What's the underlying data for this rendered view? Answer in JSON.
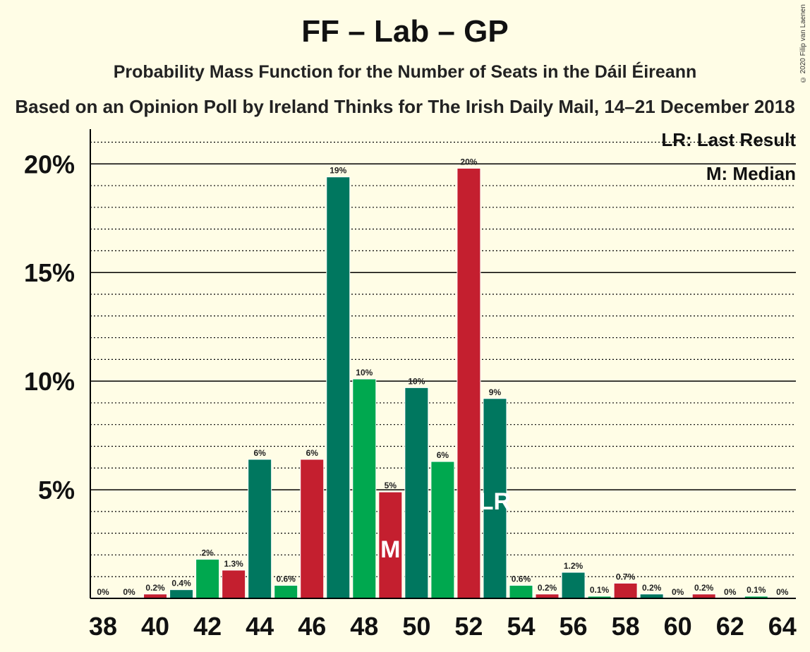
{
  "title": "FF – Lab – GP",
  "subtitle": "Probability Mass Function for the Number of Seats in the Dáil Éireann",
  "subtitle2": "Based on an Opinion Poll by Ireland Thinks for The Irish Daily Mail, 14–21 December 2018",
  "copyright": "© 2020 Filip van Laenen",
  "legend": {
    "last_result": "LR: Last Result",
    "median": "M: Median"
  },
  "colors": {
    "background": "#fffde6",
    "dark_green": "#00775f",
    "green": "#00a84f",
    "red": "#c41f2f"
  },
  "chart_data": {
    "type": "bar",
    "x": [
      38,
      39,
      40,
      41,
      42,
      43,
      44,
      45,
      46,
      47,
      48,
      49,
      50,
      51,
      52,
      53,
      54,
      55,
      56,
      57,
      58,
      59,
      60,
      61,
      62,
      63,
      64
    ],
    "values": [
      0,
      0,
      0.2,
      0.4,
      1.8,
      1.3,
      6.4,
      0.6,
      6.4,
      19.4,
      10.1,
      4.9,
      9.7,
      6.3,
      19.8,
      9.2,
      0.6,
      0.2,
      1.2,
      0.1,
      0.7,
      0.2,
      0,
      0.2,
      0,
      0.1,
      0
    ],
    "labels": [
      "0%",
      "0%",
      "0.2%",
      "0.4%",
      "2%",
      "1.3%",
      "6%",
      "0.6%",
      "6%",
      "19%",
      "10%",
      "5%",
      "10%",
      "6%",
      "20%",
      "9%",
      "0.6%",
      "0.2%",
      "1.2%",
      "0.1%",
      "0.7%",
      "0.2%",
      "0%",
      "0.2%",
      "0%",
      "0.1%",
      "0%"
    ],
    "bar_colors": [
      "dark_green",
      "green",
      "red",
      "dark_green",
      "green",
      "red",
      "dark_green",
      "green",
      "red",
      "dark_green",
      "green",
      "red",
      "dark_green",
      "green",
      "red",
      "dark_green",
      "green",
      "red",
      "dark_green",
      "green",
      "red",
      "dark_green",
      "green",
      "red",
      "dark_green",
      "green",
      "red"
    ],
    "x_tick_labels": [
      "38",
      "40",
      "42",
      "44",
      "46",
      "48",
      "50",
      "52",
      "54",
      "56",
      "58",
      "60",
      "62",
      "64"
    ],
    "y_tick_labels": [
      "5%",
      "10%",
      "15%",
      "20%"
    ],
    "y_ticks": [
      5,
      10,
      15,
      20
    ],
    "ylim": [
      0,
      21.6
    ],
    "minor_grid_step": 1,
    "median_seat": 49,
    "median_marker": "M",
    "last_result_seat": 53,
    "last_result_marker": "LR",
    "grid": true,
    "legend_position": "top-right"
  }
}
